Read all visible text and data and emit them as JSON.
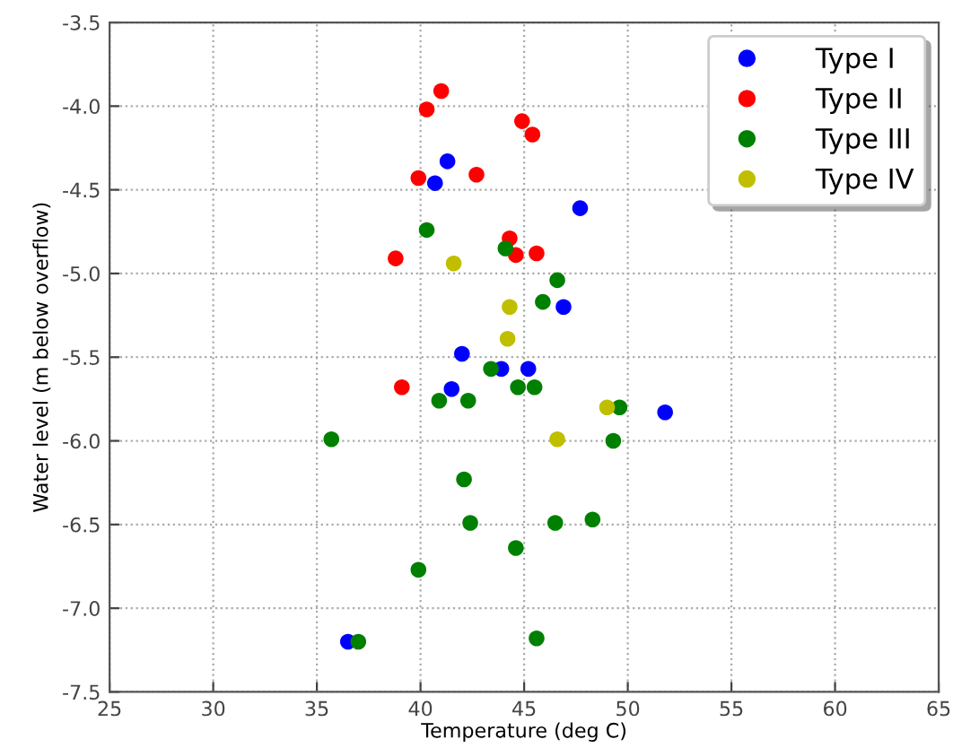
{
  "chart_data": {
    "type": "scatter",
    "xlabel": "Temperature (deg C)",
    "ylabel": "Water level (m below overflow)",
    "xlim": [
      25,
      65
    ],
    "ylim": [
      -7.5,
      -3.5
    ],
    "xticks": [
      25,
      30,
      35,
      40,
      45,
      50,
      55,
      60,
      65
    ],
    "yticks": [
      -7.5,
      {
        "value": -7,
        "label": "-7.0"
      },
      -6.5,
      {
        "value": -6,
        "label": "-6.0"
      },
      -5.5,
      {
        "value": -5,
        "label": "-5.0"
      },
      -4.5,
      {
        "value": -4,
        "label": "-4.0"
      },
      -3.5
    ],
    "grid": true,
    "legend": "top right",
    "marker": "circle",
    "series": [
      {
        "name": "Type I",
        "color": "#0000ff",
        "x": [
          41.3,
          40.7,
          42.0,
          43.9,
          45.2,
          41.5,
          47.7,
          46.9,
          51.8,
          36.5
        ],
        "values": [
          -4.33,
          -4.46,
          -5.48,
          -5.57,
          -5.57,
          -5.69,
          -4.61,
          -5.2,
          -5.83,
          -7.2
        ]
      },
      {
        "name": "Type II",
        "color": "#ff0000",
        "x": [
          41.0,
          40.3,
          44.9,
          45.4,
          39.9,
          42.7,
          44.3,
          44.6,
          45.6,
          38.8,
          39.1
        ],
        "values": [
          -3.91,
          -4.02,
          -4.09,
          -4.17,
          -4.43,
          -4.41,
          -4.79,
          -4.89,
          -4.88,
          -4.91,
          -5.68
        ]
      },
      {
        "name": "Type III",
        "color": "#008000",
        "x": [
          40.3,
          44.1,
          46.6,
          45.9,
          43.4,
          44.7,
          45.5,
          40.9,
          42.3,
          35.7,
          42.1,
          42.4,
          44.6,
          39.9,
          37.0,
          45.6,
          46.5,
          48.3,
          49.6,
          49.3
        ],
        "values": [
          -4.74,
          -4.85,
          -5.04,
          -5.17,
          -5.57,
          -5.68,
          -5.68,
          -5.76,
          -5.76,
          -5.99,
          -6.23,
          -6.49,
          -6.64,
          -6.77,
          -7.2,
          -7.18,
          -6.49,
          -6.47,
          -5.8,
          -6.0
        ]
      },
      {
        "name": "Type IV",
        "color": "#bfbf00",
        "x": [
          41.6,
          44.3,
          44.2,
          46.6,
          49.0
        ],
        "values": [
          -4.94,
          -5.2,
          -5.39,
          -5.99,
          -5.8
        ]
      }
    ]
  }
}
